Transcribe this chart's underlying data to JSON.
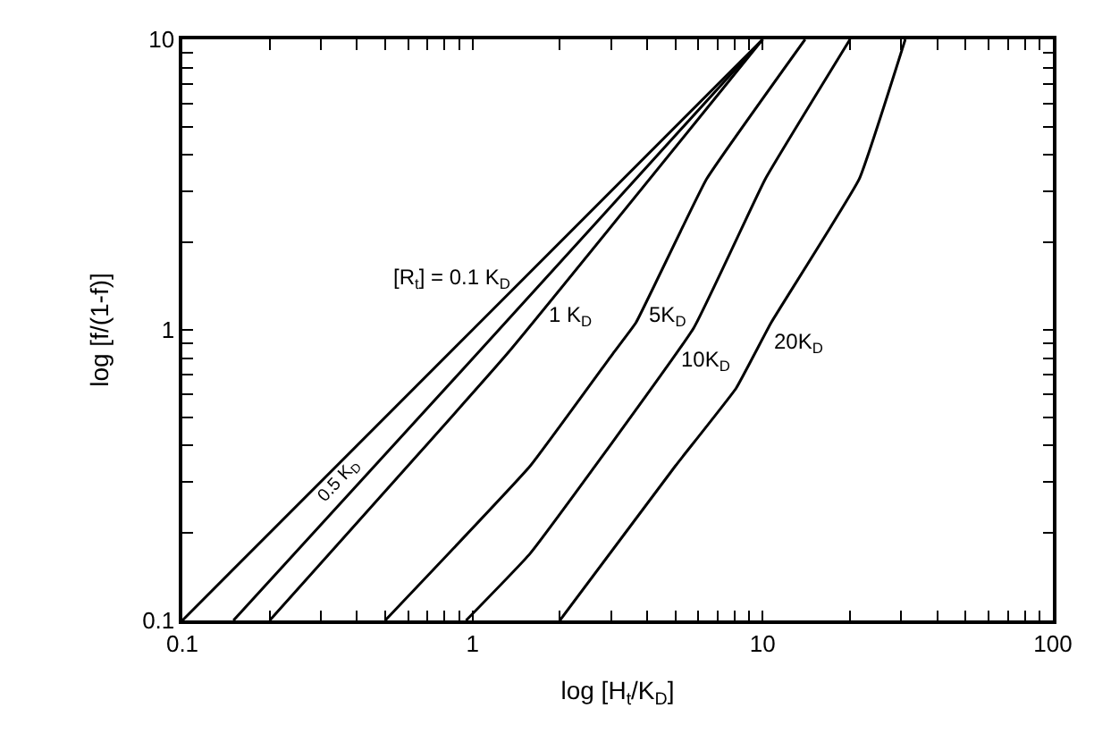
{
  "chart_data": {
    "type": "line",
    "xlabel": "log [H$_{t}$/K$_{D}$]",
    "ylabel": "log [f/(1-f)]",
    "log": "xy",
    "legend": false,
    "marker": "none",
    "line_style": "solid",
    "xlim": [
      0.1,
      100
    ],
    "ylim": [
      0.1,
      10
    ],
    "xticks": [
      0.1,
      {
        "value": 0.2,
        "label": null
      },
      {
        "value": 0.3,
        "label": null
      },
      {
        "value": 0.4,
        "label": null
      },
      {
        "value": 0.5,
        "label": null
      },
      {
        "value": 0.6,
        "label": null
      },
      {
        "value": 0.7,
        "label": null
      },
      {
        "value": 0.8,
        "label": null
      },
      {
        "value": 0.9,
        "label": null
      },
      1,
      {
        "value": 2,
        "label": null
      },
      {
        "value": 3,
        "label": null
      },
      {
        "value": 4,
        "label": null
      },
      {
        "value": 5,
        "label": null
      },
      {
        "value": 6,
        "label": null
      },
      {
        "value": 7,
        "label": null
      },
      {
        "value": 8,
        "label": null
      },
      {
        "value": 9,
        "label": null
      },
      10,
      {
        "value": 20,
        "label": null
      },
      {
        "value": 30,
        "label": null
      },
      {
        "value": 40,
        "label": null
      },
      {
        "value": 50,
        "label": null
      },
      {
        "value": 60,
        "label": null
      },
      {
        "value": 70,
        "label": null
      },
      {
        "value": 80,
        "label": null
      },
      {
        "value": 90,
        "label": null
      },
      100
    ],
    "yticks": [
      0.1,
      {
        "value": 0.2,
        "label": null
      },
      {
        "value": 0.3,
        "label": null
      },
      {
        "value": 0.4,
        "label": null
      },
      {
        "value": 0.5,
        "label": null
      },
      {
        "value": 0.6,
        "label": null
      },
      {
        "value": 0.7,
        "label": null
      },
      {
        "value": 0.8,
        "label": null
      },
      {
        "value": 0.9,
        "label": null
      },
      1,
      {
        "value": 2,
        "label": null
      },
      {
        "value": 3,
        "label": null
      },
      {
        "value": 4,
        "label": null
      },
      {
        "value": 5,
        "label": null
      },
      {
        "value": 6,
        "label": null
      },
      {
        "value": 7,
        "label": null
      },
      {
        "value": 8,
        "label": null
      },
      {
        "value": 9,
        "label": null
      },
      10
    ],
    "series": [
      {
        "name": "[R$_{t}$] = 0.1 K$_{D}$",
        "color": "#000000",
        "x": [
          0.1,
          1,
          10
        ],
        "values": [
          0.1,
          1,
          10
        ]
      },
      {
        "name": "0.5 K$_{D}$",
        "color": "#000000",
        "x": [
          0.15,
          1.04,
          10
        ],
        "values": [
          0.1,
          0.83,
          10
        ]
      },
      {
        "name": "1 K$_{D}$",
        "color": "#000000",
        "x": [
          0.2,
          1.32,
          10
        ],
        "values": [
          0.1,
          0.83,
          10
        ]
      },
      {
        "name": "5K$_{D}$",
        "color": "#000000",
        "x": [
          0.5,
          1.58,
          3.05,
          3.66,
          6.4,
          14
        ],
        "values": [
          0.1,
          0.34,
          0.83,
          1.06,
          3.3,
          10
        ]
      },
      {
        "name": "10K$_{D}$",
        "color": "#000000",
        "x": [
          0.95,
          1.58,
          5.8,
          10.2,
          20
        ],
        "values": [
          0.1,
          0.17,
          1.02,
          3.3,
          10
        ]
      },
      {
        "name": "20K$_{D}$",
        "color": "#000000",
        "x": [
          2,
          5,
          8.1,
          10.7,
          21.5,
          31
        ],
        "values": [
          0.1,
          0.34,
          0.63,
          1.06,
          3.3,
          10
        ]
      }
    ]
  }
}
